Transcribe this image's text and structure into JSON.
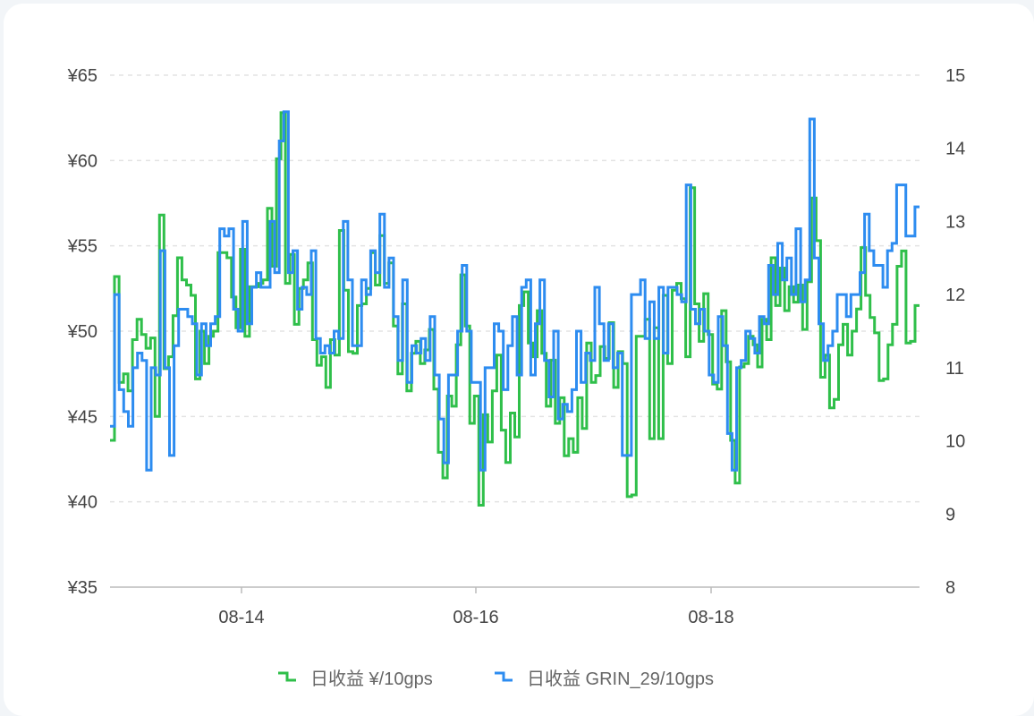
{
  "chart_data": {
    "type": "line",
    "step": true,
    "x_ticks": [
      "08-14",
      "08-16",
      "08-18"
    ],
    "y_left": {
      "ticks": [
        "¥35",
        "¥40",
        "¥45",
        "¥50",
        "¥55",
        "¥60",
        "¥65"
      ],
      "min": 35,
      "max": 65
    },
    "y_right": {
      "ticks": [
        "8",
        "9",
        "10",
        "11",
        "12",
        "13",
        "14",
        "15"
      ],
      "min": 8,
      "max": 15
    },
    "grid": true,
    "legend_position": "bottom",
    "series": [
      {
        "name": "日收益 ¥/10gps",
        "axis": "left",
        "color": "#2fbf4a",
        "values": [
          43.6,
          53.2,
          47,
          47.5,
          46.5,
          49.5,
          50.7,
          49.8,
          49,
          49.6,
          45,
          56.8,
          47.8,
          48.5,
          50.9,
          54.3,
          53,
          52.7,
          52.1,
          47.2,
          50,
          48.1,
          49.7,
          50,
          54.6,
          54.6,
          54.3,
          52,
          50.2,
          54.8,
          49.7,
          52.6,
          52.6,
          52.8,
          53,
          57.2,
          53.8,
          60.1,
          62.8,
          52.8,
          54.5,
          50.4,
          52.5,
          53,
          54,
          49.5,
          48,
          48.5,
          46.7,
          49.5,
          48.6,
          55.9,
          52.4,
          48.8,
          48.7,
          51.5,
          51.6,
          52.5,
          54.6,
          52.7,
          55.6,
          52.8,
          54,
          50.3,
          47.5,
          51.6,
          46.5,
          48.7,
          49.4,
          48.1,
          48.9,
          50.1,
          46.6,
          42.9,
          41.4,
          46.2,
          45.6,
          49.2,
          53.3,
          50.3,
          44.6,
          46.2,
          39.8,
          45.1,
          43.5,
          46.5,
          48.6,
          44.2,
          42.3,
          45.2,
          43.8,
          51.5,
          52.3,
          49.3,
          48.5,
          51.2,
          48.7,
          45.6,
          48.3,
          44.6,
          46.1,
          42.7,
          43.7,
          42.9,
          46.1,
          44.3,
          49.3,
          47,
          47.4,
          49.1,
          48.4,
          50.5,
          46.7,
          48.8,
          48.1,
          40.3,
          40.4,
          49.7,
          49.7,
          50.7,
          43.7,
          50.2,
          43.7,
          52.1,
          48.1,
          52.4,
          52.8,
          51.9,
          48.5,
          58.4,
          51.6,
          49.4,
          52.2,
          49.8,
          46.9,
          46.6,
          51.2,
          48.2,
          43.6,
          41.1,
          47.9,
          48.1,
          49.7,
          49.2,
          47.9,
          50.7,
          49.5,
          54.3,
          51.5,
          53.7,
          51.2,
          52.6,
          51.7,
          52.7,
          50.1,
          52.9,
          57.8,
          55.3,
          47.3,
          48.6,
          45.5,
          46,
          49.2,
          50.4,
          48.6,
          50,
          51.3,
          54.9,
          52.1,
          50.8,
          49.9,
          47.1,
          47.2,
          49.2,
          50.4,
          53.8,
          54.7,
          49.3,
          49.4,
          51.5
        ]
      },
      {
        "name": "日收益 GRIN_29/10gps",
        "axis": "right",
        "color": "#2d8cf0",
        "values": [
          10.2,
          12,
          10.7,
          10.4,
          10.2,
          11,
          11.2,
          11.1,
          9.6,
          11,
          10.9,
          12.6,
          11,
          9.8,
          11.3,
          11.8,
          11.8,
          11.7,
          11.6,
          10.9,
          11.6,
          11.3,
          11.6,
          11.7,
          12.9,
          12.8,
          12.9,
          11.8,
          11.5,
          13,
          11.6,
          12.1,
          12.3,
          12.1,
          12.1,
          13,
          12.3,
          14.1,
          14.5,
          12.3,
          12.6,
          11.8,
          12.1,
          12,
          12.6,
          11.4,
          11.2,
          11.3,
          11.2,
          11.5,
          11.4,
          13,
          12.2,
          11.3,
          11.3,
          12.2,
          12,
          12.6,
          12.3,
          13.1,
          12.1,
          12.5,
          11.7,
          11.1,
          12.2,
          10.8,
          11.3,
          11.2,
          11.4,
          11.1,
          11.7,
          10.9,
          10.3,
          9.7,
          10.9,
          10.9,
          11.5,
          12.4,
          11.5,
          10.8,
          10.8,
          9.6,
          11,
          11,
          11.6,
          11.5,
          10.7,
          11.3,
          11.7,
          10.9,
          12.1,
          12.2,
          10.9,
          11.6,
          12.2,
          11.1,
          10.6,
          11.5,
          10.3,
          10.5,
          10.4,
          10.7,
          11.5,
          10.8,
          11.2,
          11.1,
          12.1,
          11.6,
          11.1,
          11.6,
          11,
          11.2,
          9.8,
          9.8,
          12,
          12,
          12.2,
          11.4,
          11.9,
          11.4,
          12.1,
          11.2,
          12.1,
          12.1,
          12,
          11.9,
          13.5,
          11.8,
          11.6,
          11.8,
          11.5,
          10.9,
          10.8,
          11.7,
          11.3,
          10.1,
          9.6,
          11,
          11.1,
          11.5,
          11.4,
          11.2,
          11.7,
          11.6,
          12.4,
          12,
          12.7,
          12.2,
          12.5,
          12,
          12.9,
          11.9,
          12.2,
          14.4,
          12.5,
          11.6,
          11.1,
          11.3,
          11.5,
          12,
          12,
          11.7,
          12,
          12,
          12.3,
          13.1,
          12.6,
          12.4,
          12.4,
          12.1,
          12.6,
          12.7,
          13.5,
          13.5,
          12.8,
          12.8,
          13.2
        ]
      }
    ]
  }
}
